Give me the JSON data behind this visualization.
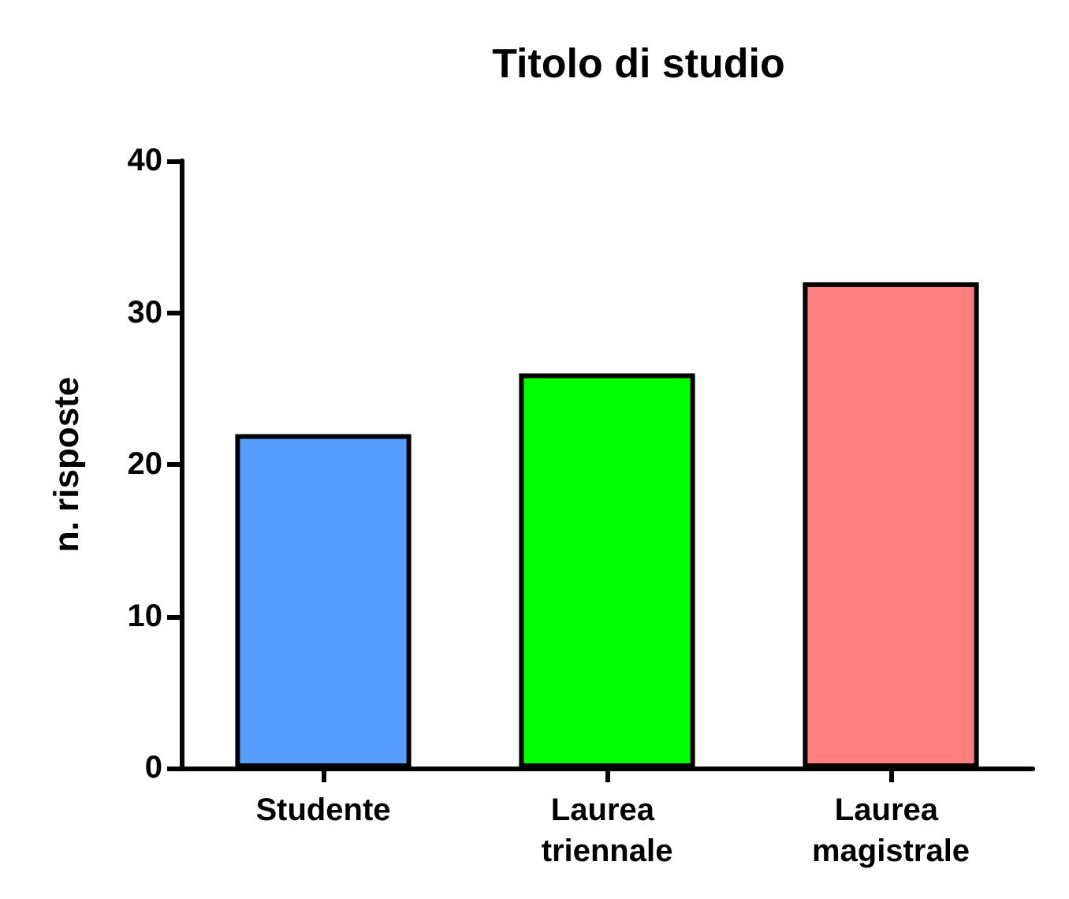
{
  "chart_data": {
    "type": "bar",
    "title": "Titolo di studio",
    "ylabel": "n. risposte",
    "categories": [
      "Studente",
      "Laurea triennale",
      "Laurea magistrale"
    ],
    "values": [
      22,
      26,
      32
    ],
    "colors": [
      "#559dff",
      "#00ff00",
      "#ff7f7f"
    ],
    "ylim": [
      0,
      40
    ],
    "yticks": [
      0,
      10,
      20,
      30,
      40
    ],
    "grid": false
  }
}
